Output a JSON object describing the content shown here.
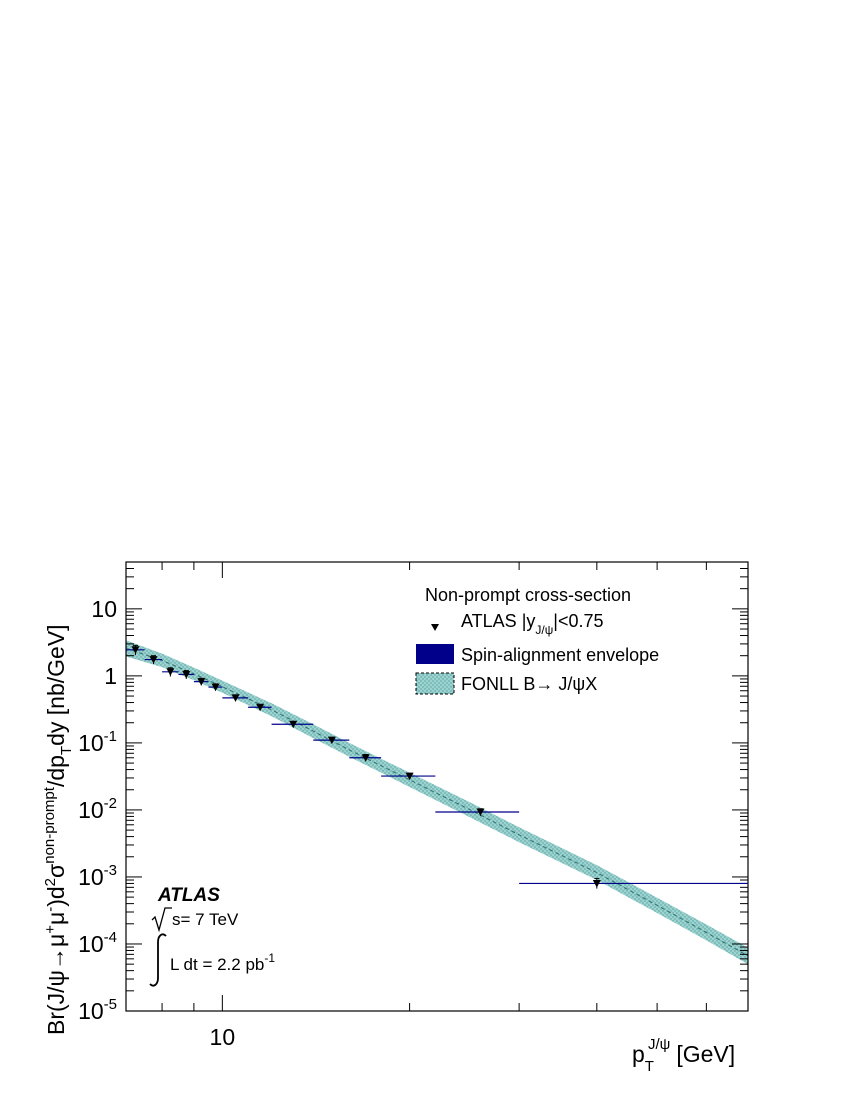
{
  "chart_data": {
    "type": "scatter",
    "title": "",
    "x_scale": "log",
    "y_scale": "log",
    "xlim": [
      7,
      70
    ],
    "ylim": [
      1e-05,
      50
    ],
    "xlabel": {
      "main": "p",
      "sub": "T",
      "sup": "J/ψ",
      "unit": "[GeV]"
    },
    "ylabel": {
      "p1": "Br(J/ψ→μ",
      "sup1": "+",
      "p2": "μ",
      "sup2": "-",
      "p3": ")d",
      "sup3": "2",
      "p4": "σ",
      "sup4": "non-prompt",
      "p5": "/dp",
      "sub5": "T",
      "p6": "dy [nb/GeV]"
    },
    "x_tick_labels": [
      {
        "value": 10,
        "label": "10"
      }
    ],
    "y_tick_labels": [
      {
        "value": 10,
        "base": "10",
        "exp": ""
      },
      {
        "value": 1,
        "base": "1",
        "exp": ""
      },
      {
        "value": 0.1,
        "base": "10",
        "exp": "-1"
      },
      {
        "value": 0.01,
        "base": "10",
        "exp": "-2"
      },
      {
        "value": 0.001,
        "base": "10",
        "exp": "-3"
      },
      {
        "value": 0.0001,
        "base": "10",
        "exp": "-4"
      },
      {
        "value": 1e-05,
        "base": "10",
        "exp": "-5"
      }
    ],
    "legend": {
      "position": "top-right",
      "title": "Non-prompt cross-section",
      "entries": [
        {
          "label": "ATLAS |y",
          "label_sub": "J/ψ",
          "label_tail": "|<0.75",
          "style": "marker"
        },
        {
          "label": "Spin-alignment envelope",
          "style": "box"
        },
        {
          "label": "FONLL B→ J/ψX",
          "style": "band"
        }
      ]
    },
    "annotation": {
      "experiment": "ATLAS",
      "energy": "s= 7 TeV",
      "lumi": "L dt = 2.2 pb",
      "lumi_exp": "-1"
    },
    "series": [
      {
        "name": "ATLAS |yJ/ψ|<0.75",
        "points": [
          {
            "x": 7.25,
            "xlo": 7.0,
            "xhi": 7.5,
            "y": 2.45,
            "ylo": 2.05,
            "yhi": 2.85
          },
          {
            "x": 7.75,
            "xlo": 7.5,
            "xhi": 8.0,
            "y": 1.75,
            "ylo": 1.5,
            "yhi": 2.0
          },
          {
            "x": 8.25,
            "xlo": 8.0,
            "xhi": 8.5,
            "y": 1.15,
            "ylo": 0.98,
            "yhi": 1.32
          },
          {
            "x": 8.75,
            "xlo": 8.5,
            "xhi": 9.0,
            "y": 1.05,
            "ylo": 0.9,
            "yhi": 1.2
          },
          {
            "x": 9.25,
            "xlo": 9.0,
            "xhi": 9.5,
            "y": 0.82,
            "ylo": 0.72,
            "yhi": 0.92
          },
          {
            "x": 9.75,
            "xlo": 9.5,
            "xhi": 10.0,
            "y": 0.68,
            "ylo": 0.6,
            "yhi": 0.76
          },
          {
            "x": 10.5,
            "xlo": 10.0,
            "xhi": 11.0,
            "y": 0.47,
            "ylo": 0.42,
            "yhi": 0.52
          },
          {
            "x": 11.5,
            "xlo": 11.0,
            "xhi": 12.0,
            "y": 0.34,
            "ylo": 0.31,
            "yhi": 0.37
          },
          {
            "x": 13.0,
            "xlo": 12.0,
            "xhi": 14.0,
            "y": 0.19,
            "ylo": 0.175,
            "yhi": 0.205
          },
          {
            "x": 15.0,
            "xlo": 14.0,
            "xhi": 16.0,
            "y": 0.11,
            "ylo": 0.1,
            "yhi": 0.12
          },
          {
            "x": 17.0,
            "xlo": 16.0,
            "xhi": 18.0,
            "y": 0.06,
            "ylo": 0.053,
            "yhi": 0.067
          },
          {
            "x": 20.0,
            "xlo": 18.0,
            "xhi": 22.0,
            "y": 0.032,
            "ylo": 0.029,
            "yhi": 0.035
          },
          {
            "x": 26.0,
            "xlo": 22.0,
            "xhi": 30.0,
            "y": 0.0093,
            "ylo": 0.0082,
            "yhi": 0.0104
          },
          {
            "x": 40.0,
            "xlo": 30.0,
            "xhi": 70.0,
            "y": 0.0008,
            "ylo": 0.00067,
            "yhi": 0.00095
          }
        ]
      },
      {
        "name": "FONLL B→ J/ψX",
        "band": [
          {
            "x": 7,
            "lo": 1.95,
            "hi": 3.4
          },
          {
            "x": 8,
            "lo": 1.35,
            "hi": 2.15
          },
          {
            "x": 9,
            "lo": 0.86,
            "hi": 1.33
          },
          {
            "x": 10,
            "lo": 0.56,
            "hi": 0.85
          },
          {
            "x": 12,
            "lo": 0.25,
            "hi": 0.39
          },
          {
            "x": 14,
            "lo": 0.118,
            "hi": 0.19
          },
          {
            "x": 16,
            "lo": 0.062,
            "hi": 0.1
          },
          {
            "x": 18,
            "lo": 0.036,
            "hi": 0.058
          },
          {
            "x": 20,
            "lo": 0.022,
            "hi": 0.036
          },
          {
            "x": 25,
            "lo": 0.0078,
            "hi": 0.013
          },
          {
            "x": 30,
            "lo": 0.0033,
            "hi": 0.0055
          },
          {
            "x": 40,
            "lo": 0.0009,
            "hi": 0.0015
          },
          {
            "x": 50,
            "lo": 0.00029,
            "hi": 0.00049
          },
          {
            "x": 60,
            "lo": 0.000113,
            "hi": 0.000195
          },
          {
            "x": 70,
            "lo": 5e-05,
            "hi": 8.8e-05
          }
        ]
      }
    ],
    "colors": {
      "marker": "#000000",
      "spin_envelope": "#00008b",
      "band_fill": "#9ad3d0",
      "band_hatch": "#5a9e9c",
      "band_edge": "#2c6f6d",
      "frame": "#000000"
    }
  }
}
